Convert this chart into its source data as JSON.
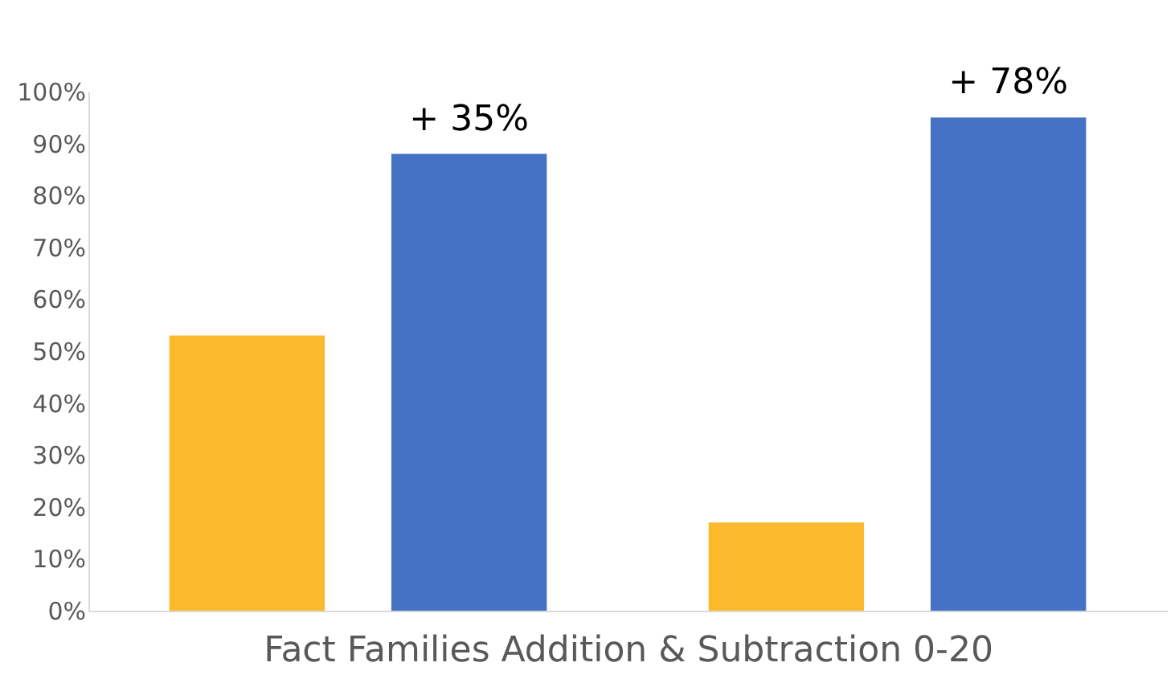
{
  "chart_data": {
    "type": "bar",
    "xlabel": "Fact Families Addition & Subtraction 0-20",
    "categories": [
      null,
      null
    ],
    "series": [
      {
        "color": "#fbba2c",
        "values": [
          53,
          17
        ]
      },
      {
        "color": "#4472c4",
        "values": [
          88,
          95
        ]
      }
    ],
    "ylim": [
      0,
      100
    ],
    "yticks": [
      {
        "value": 0,
        "label": "0%"
      },
      {
        "value": 10,
        "label": "10%"
      },
      {
        "value": 20,
        "label": "20%"
      },
      {
        "value": 30,
        "label": "30%"
      },
      {
        "value": 40,
        "label": "40%"
      },
      {
        "value": 50,
        "label": "50%"
      },
      {
        "value": 60,
        "label": "60%"
      },
      {
        "value": 70,
        "label": "70%"
      },
      {
        "value": 80,
        "label": "80%"
      },
      {
        "value": 90,
        "label": "90%"
      },
      {
        "value": 100,
        "label": "100%"
      }
    ],
    "annotations": [
      "+ 35%",
      "+ 78%"
    ],
    "grid": false,
    "legend": false
  }
}
